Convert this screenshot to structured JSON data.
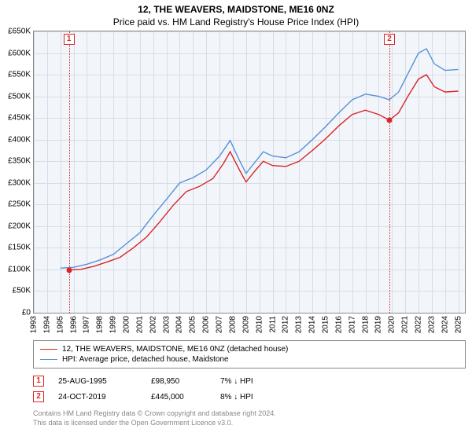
{
  "title_line1": "12, THE WEAVERS, MAIDSTONE, ME16 0NZ",
  "title_line2": "Price paid vs. HM Land Registry's House Price Index (HPI)",
  "chart": {
    "type": "line",
    "background_color": "#f2f6fb",
    "grid_color": "#d8dde5",
    "border_color": "#888888",
    "x_start": 1993,
    "x_end": 2025.5,
    "x_ticks": [
      1993,
      1994,
      1995,
      1996,
      1997,
      1998,
      1999,
      2000,
      2001,
      2002,
      2003,
      2004,
      2005,
      2006,
      2007,
      2008,
      2009,
      2010,
      2011,
      2012,
      2013,
      2014,
      2015,
      2016,
      2017,
      2018,
      2019,
      2020,
      2021,
      2022,
      2023,
      2024,
      2025
    ],
    "y_min": 0,
    "y_max": 650000,
    "y_tick_step": 50000,
    "y_tick_labels": [
      "£0",
      "£50K",
      "£100K",
      "£150K",
      "£200K",
      "£250K",
      "£300K",
      "£350K",
      "£400K",
      "£450K",
      "£500K",
      "£550K",
      "£600K",
      "£650K"
    ],
    "series": [
      {
        "id": "hpi",
        "label": "HPI: Average price, detached house, Maidstone",
        "color": "#5a8fd6",
        "line_width": 1.4,
        "points": [
          [
            1995.0,
            103000
          ],
          [
            1996.0,
            105000
          ],
          [
            1997.0,
            112000
          ],
          [
            1998.0,
            122000
          ],
          [
            1999.0,
            135000
          ],
          [
            2000.0,
            160000
          ],
          [
            2001.0,
            185000
          ],
          [
            2002.0,
            225000
          ],
          [
            2003.0,
            262000
          ],
          [
            2004.0,
            300000
          ],
          [
            2005.0,
            312000
          ],
          [
            2006.0,
            330000
          ],
          [
            2007.0,
            362000
          ],
          [
            2007.8,
            398000
          ],
          [
            2008.5,
            352000
          ],
          [
            2009.0,
            322000
          ],
          [
            2009.6,
            345000
          ],
          [
            2010.3,
            372000
          ],
          [
            2011.0,
            362000
          ],
          [
            2012.0,
            358000
          ],
          [
            2013.0,
            372000
          ],
          [
            2014.0,
            400000
          ],
          [
            2015.0,
            430000
          ],
          [
            2016.0,
            462000
          ],
          [
            2017.0,
            492000
          ],
          [
            2018.0,
            505000
          ],
          [
            2019.0,
            500000
          ],
          [
            2019.8,
            492000
          ],
          [
            2020.5,
            510000
          ],
          [
            2021.2,
            552000
          ],
          [
            2022.0,
            600000
          ],
          [
            2022.6,
            610000
          ],
          [
            2023.2,
            575000
          ],
          [
            2024.0,
            560000
          ],
          [
            2025.0,
            562000
          ]
        ]
      },
      {
        "id": "property",
        "label": "12, THE WEAVERS, MAIDSTONE, ME16 0NZ (detached house)",
        "color": "#d92626",
        "line_width": 1.4,
        "points": [
          [
            1995.65,
            98950
          ],
          [
            1996.5,
            100000
          ],
          [
            1997.5,
            107000
          ],
          [
            1998.5,
            117000
          ],
          [
            1999.5,
            128000
          ],
          [
            2000.5,
            150000
          ],
          [
            2001.5,
            175000
          ],
          [
            2002.5,
            210000
          ],
          [
            2003.5,
            248000
          ],
          [
            2004.5,
            280000
          ],
          [
            2005.5,
            292000
          ],
          [
            2006.5,
            310000
          ],
          [
            2007.3,
            345000
          ],
          [
            2007.8,
            372000
          ],
          [
            2008.5,
            330000
          ],
          [
            2009.0,
            302000
          ],
          [
            2009.6,
            325000
          ],
          [
            2010.3,
            350000
          ],
          [
            2011.0,
            340000
          ],
          [
            2012.0,
            338000
          ],
          [
            2013.0,
            350000
          ],
          [
            2014.0,
            375000
          ],
          [
            2015.0,
            402000
          ],
          [
            2016.0,
            432000
          ],
          [
            2017.0,
            458000
          ],
          [
            2018.0,
            468000
          ],
          [
            2019.0,
            458000
          ],
          [
            2019.81,
            445000
          ],
          [
            2020.5,
            462000
          ],
          [
            2021.2,
            500000
          ],
          [
            2022.0,
            540000
          ],
          [
            2022.6,
            550000
          ],
          [
            2023.2,
            522000
          ],
          [
            2024.0,
            510000
          ],
          [
            2025.0,
            512000
          ]
        ]
      }
    ],
    "markers": [
      {
        "n": "1",
        "color": "#d92626",
        "x": 1995.65,
        "y": 98950
      },
      {
        "n": "2",
        "color": "#d92626",
        "x": 2019.81,
        "y": 445000
      }
    ]
  },
  "legend": {
    "items": [
      {
        "color": "#d92626",
        "label": "12, THE WEAVERS, MAIDSTONE, ME16 0NZ (detached house)"
      },
      {
        "color": "#5a8fd6",
        "label": "HPI: Average price, detached house, Maidstone"
      }
    ]
  },
  "transactions": [
    {
      "n": "1",
      "color": "#d92626",
      "date": "25-AUG-1995",
      "price": "£98,950",
      "hpi": "7% ↓ HPI"
    },
    {
      "n": "2",
      "color": "#d92626",
      "date": "24-OCT-2019",
      "price": "£445,000",
      "hpi": "8% ↓ HPI"
    }
  ],
  "footer_line1": "Contains HM Land Registry data © Crown copyright and database right 2024.",
  "footer_line2": "This data is licensed under the Open Government Licence v3.0."
}
